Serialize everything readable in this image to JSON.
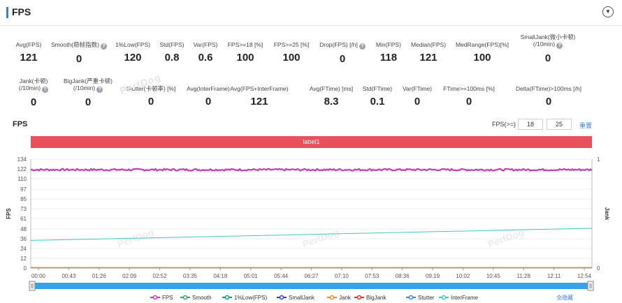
{
  "header": {
    "title": "FPS",
    "collapse_icon": "chevron-down-icon"
  },
  "stats_row1": [
    {
      "label": "Avg(FPS)",
      "value": "121",
      "help": false
    },
    {
      "label": "Smooth(稳帧指数)",
      "value": "0",
      "help": true
    },
    {
      "label": "1%Low(FPS)",
      "value": "120",
      "help": false
    },
    {
      "label": "Std(FPS)",
      "value": "0.8",
      "help": false
    },
    {
      "label": "Var(FPS)",
      "value": "0.6",
      "help": false
    },
    {
      "label": "FPS>=18 [%]",
      "value": "100",
      "help": false
    },
    {
      "label": "FPS>=25 [%]",
      "value": "100",
      "help": false
    },
    {
      "label": "Drop(FPS) [/h]",
      "value": "0",
      "help": true
    },
    {
      "label": "Min(FPS)",
      "value": "118",
      "help": false
    },
    {
      "label": "Median(FPS)",
      "value": "121",
      "help": false
    },
    {
      "label": "MedRange(FPS)[%]",
      "value": "100",
      "help": false
    },
    {
      "label": "SmallJank(微小卡顿)",
      "label2": "(/10min)",
      "value": "0",
      "help": true
    }
  ],
  "stats_row2": [
    {
      "label": "Jank(卡顿)",
      "label2": "(/10min)",
      "value": "0",
      "help": true
    },
    {
      "label": "BigJank(严重卡顿)",
      "label2": "(/10min)",
      "value": "0",
      "help": true
    },
    {
      "label": "Stutter(卡顿率) [%]",
      "value": "0",
      "help": false
    },
    {
      "label": "Avg(InterFrame)",
      "value": "0",
      "help": false
    },
    {
      "label": "Avg(FPS+InterFrame)",
      "value": "121",
      "help": false
    },
    {
      "label": "Avg(FTime) [ms]",
      "value": "8.3",
      "help": false
    },
    {
      "label": "Std(FTime)",
      "value": "0.1",
      "help": false
    },
    {
      "label": "Var(FTime)",
      "value": "0",
      "help": false
    },
    {
      "label": "FTime>=100ms [%]",
      "value": "0",
      "help": false
    },
    {
      "label": "Delta(FTime)>100ms [/h]",
      "value": "0",
      "help": false
    }
  ],
  "watermark": "PerfDog",
  "chart_header": {
    "title": "FPS",
    "threshold_label": "FPS(>=)",
    "threshold_1": "18",
    "threshold_2": "25",
    "reset_label": "重置"
  },
  "chart_data": {
    "type": "line",
    "band_label": "label1",
    "ylabel": "FPS",
    "y2label": "Jank",
    "ylim": [
      0,
      134
    ],
    "yticks": [
      0,
      12,
      24,
      36,
      48,
      61,
      73,
      85,
      97,
      110,
      122,
      134
    ],
    "y2ticks": [
      "0",
      "1"
    ],
    "x_ticks": [
      "00:00",
      "00:43",
      "01:26",
      "02:09",
      "02:52",
      "03:35",
      "04:18",
      "05:01",
      "05:44",
      "06:27",
      "07:10",
      "07:53",
      "08:36",
      "09:19",
      "10:02",
      "10:45",
      "11:28",
      "12:11",
      "12:54"
    ],
    "x_range_seconds": [
      0,
      813
    ],
    "series": [
      {
        "name": "FPS",
        "color": "#c23bb8",
        "values_desc": "approx constant",
        "mean": 121,
        "min": 118,
        "max": 123
      },
      {
        "name": "Smooth",
        "color": "#27a860",
        "values": []
      },
      {
        "name": "1%Low(FPS)",
        "color": "#15998a",
        "values": []
      },
      {
        "name": "SmallJank",
        "color": "#2f3fd0",
        "values": []
      },
      {
        "name": "Jank",
        "color": "#f08a2c",
        "values": []
      },
      {
        "name": "BigJank",
        "color": "#e0302a",
        "values": []
      },
      {
        "name": "Stutter",
        "color": "#3d86e8",
        "values": []
      },
      {
        "name": "InterFrame",
        "color": "#3ec9c0",
        "start": 34,
        "end": 49
      }
    ],
    "hide_all_label": "全隐藏"
  }
}
